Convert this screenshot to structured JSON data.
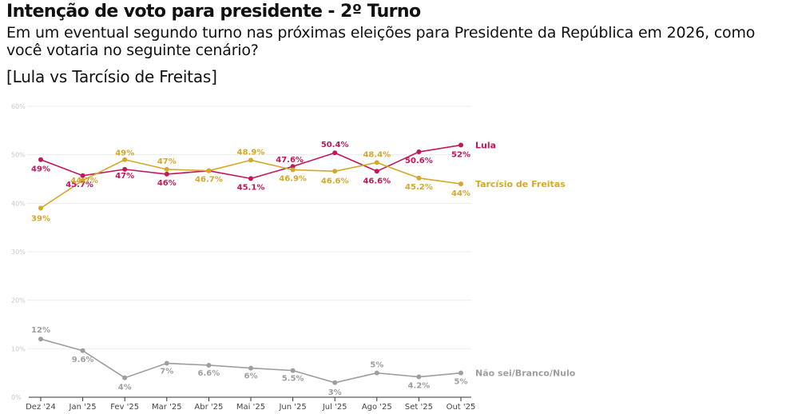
{
  "header": {
    "title": "Intenção de voto para presidente - 2º Turno",
    "subtitle": "Em um eventual segundo turno nas próximas eleições para Presidente da República em 2026, como você votaria no seguinte cenário?",
    "scenario": "[Lula vs Tarcísio de Freitas]"
  },
  "chart_data": {
    "type": "line",
    "title": "Intenção de voto para presidente - 2º Turno",
    "xlabel": "",
    "ylabel": "",
    "x": [
      "Dez '24",
      "Jan '25",
      "Fev '25",
      "Mar '25",
      "Abr '25",
      "Mai '25",
      "Jun '25",
      "Jul '25",
      "Ago '25",
      "Set '25",
      "Out '25"
    ],
    "ylim": [
      0,
      60
    ],
    "yticks": [
      0,
      10,
      20,
      30,
      40,
      50,
      60
    ],
    "ytick_labels": [
      "0%",
      "10%",
      "20%",
      "30%",
      "40%",
      "50%",
      "60%"
    ],
    "grid": true,
    "legend": "right-end-labels",
    "series": [
      {
        "name": "Lula",
        "color": "#c2185b",
        "values": [
          49,
          45.7,
          47,
          46,
          46.7,
          45.1,
          47.6,
          50.4,
          46.6,
          50.6,
          52
        ],
        "labels": [
          "49%",
          "45.7%",
          "47%",
          "46%",
          "",
          "45.1%",
          "47.6%",
          "50.4%",
          "46.6%",
          "50.6%",
          "52%"
        ]
      },
      {
        "name": "Tarcísio de Freitas",
        "color": "#d4a82a",
        "values": [
          39,
          44.7,
          49,
          47,
          46.7,
          48.9,
          46.9,
          46.6,
          48.4,
          45.2,
          44
        ],
        "labels": [
          "39%",
          "44.7%",
          "49%",
          "47%",
          "46.7%",
          "48.9%",
          "46.9%",
          "46.6%",
          "48.4%",
          "45.2%",
          "44%"
        ]
      },
      {
        "name": "Não sei/Branco/Nulo",
        "color": "#9e9e9e",
        "values": [
          12,
          9.6,
          4,
          7,
          6.6,
          6,
          5.5,
          3,
          5,
          4.2,
          5
        ],
        "labels": [
          "12%",
          "9.6%",
          "4%",
          "7%",
          "6.6%",
          "6%",
          "5.5%",
          "3%",
          "5%",
          "4.2%",
          "5%"
        ]
      }
    ]
  }
}
